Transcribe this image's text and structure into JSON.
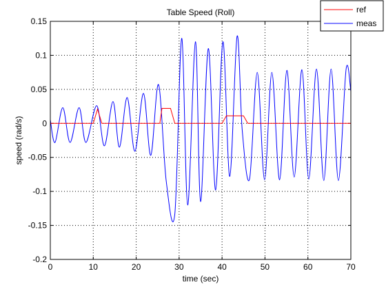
{
  "chart_data": {
    "type": "line",
    "title": "Table Speed (Roll)",
    "xlabel": "time (sec)",
    "ylabel": "speed (rad/s)",
    "xlim": [
      0,
      70
    ],
    "ylim": [
      -0.2,
      0.15
    ],
    "xticks": [
      0,
      10,
      20,
      30,
      40,
      50,
      60,
      70
    ],
    "yticks": [
      -0.2,
      -0.15,
      -0.1,
      -0.05,
      0,
      0.05,
      0.1,
      0.15
    ],
    "xtick_labels": [
      "0",
      "10",
      "20",
      "30",
      "40",
      "50",
      "60",
      "70"
    ],
    "ytick_labels": [
      "-0.2",
      "-0.15",
      "-0.1",
      "-0.05",
      "0",
      "0.05",
      "0.1",
      "0.15"
    ],
    "grid": true,
    "legend_position": "top-right",
    "series": [
      {
        "name": "ref",
        "color": "#ff0000",
        "x": [
          0,
          0,
          0.2,
          10,
          11,
          12,
          25.5,
          26,
          28,
          29,
          40,
          41,
          45,
          46,
          70
        ],
        "y": [
          0.028,
          0,
          0,
          0,
          0.021,
          0,
          0,
          0.022,
          0.022,
          0,
          0,
          0.011,
          0.011,
          0,
          0
        ]
      },
      {
        "name": "meas",
        "color": "#0000ff",
        "x": [
          0,
          1.1,
          2.9,
          4.6,
          6.7,
          8.3,
          10.8,
          12.6,
          14.6,
          16.1,
          17.9,
          19.7,
          21.7,
          23.4,
          25.2,
          27.0,
          29.0,
          30.6,
          32.0,
          33.8,
          35.0,
          36.8,
          38.5,
          40.2,
          41.8,
          43.5,
          44.7,
          46.4,
          48.2,
          49.9,
          51.6,
          53.4,
          55.1,
          56.8,
          58.6,
          60.2,
          62.0,
          63.7,
          65.4,
          67.1,
          68.9,
          70.0
        ],
        "y": [
          0.005,
          -0.028,
          0.023,
          -0.028,
          0.023,
          -0.028,
          0.026,
          -0.033,
          0.032,
          -0.035,
          0.038,
          -0.041,
          0.044,
          -0.047,
          0.057,
          -0.085,
          -0.133,
          0.125,
          -0.12,
          0.12,
          -0.115,
          0.11,
          -0.098,
          0.12,
          -0.078,
          0.128,
          -0.01,
          -0.082,
          0.075,
          -0.083,
          0.075,
          -0.083,
          0.078,
          -0.079,
          0.079,
          -0.082,
          0.08,
          -0.084,
          0.08,
          -0.084,
          0.08,
          0.047
        ]
      }
    ]
  }
}
